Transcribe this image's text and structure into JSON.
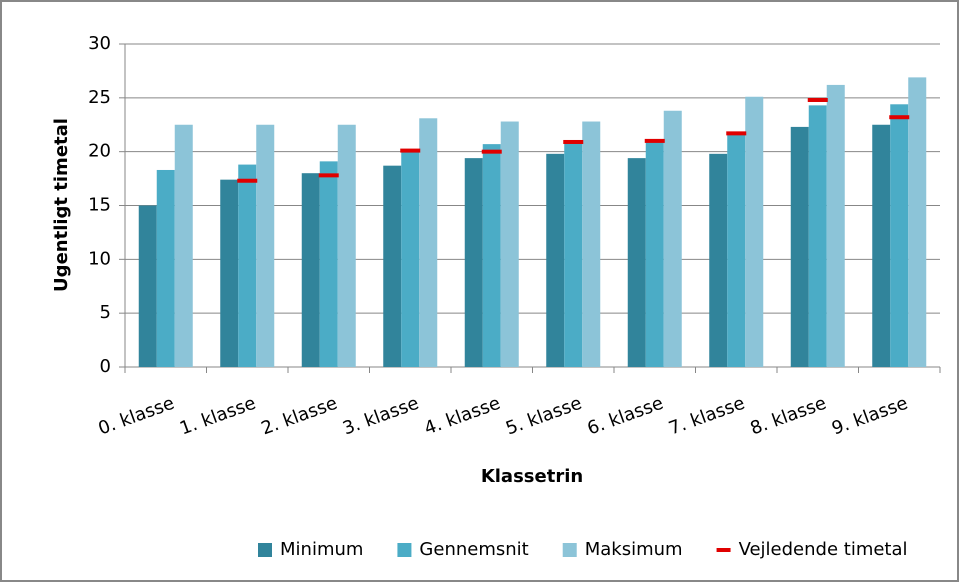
{
  "chart_data": {
    "type": "bar",
    "x_label": "Klassetrin",
    "y_label": "Ugentligt timetal",
    "categories": [
      "0. klasse",
      "1. klasse",
      "2. klasse",
      "3. klasse",
      "4. klasse",
      "5. klasse",
      "6. klasse",
      "7. klasse",
      "8. klasse",
      "9. klasse"
    ],
    "series": [
      {
        "name": "Minimum",
        "color": "#31849b",
        "values": [
          15,
          17.4,
          18,
          18.7,
          19.4,
          19.8,
          19.4,
          19.8,
          22.3,
          22.5
        ]
      },
      {
        "name": "Gennemsnit",
        "color": "#4bacc6",
        "values": [
          18.3,
          18.8,
          19.1,
          20.1,
          20.7,
          20.8,
          21.0,
          21.7,
          24.3,
          24.4
        ]
      },
      {
        "name": "Maksimum",
        "color": "#8cc4d8",
        "values": [
          22.5,
          22.5,
          22.5,
          23.1,
          22.8,
          22.8,
          23.8,
          25.1,
          26.2,
          26.9
        ]
      },
      {
        "name": "Vejledende timetal",
        "color": "#e00000",
        "style": "dash",
        "values": [
          null,
          17.3,
          17.8,
          20.1,
          20.0,
          20.9,
          21.0,
          21.7,
          24.8,
          23.2
        ]
      }
    ],
    "ylim": [
      0,
      30
    ],
    "yticks": [
      0,
      5,
      10,
      15,
      20,
      25,
      30
    ],
    "grid": true,
    "legend": "bottom"
  }
}
